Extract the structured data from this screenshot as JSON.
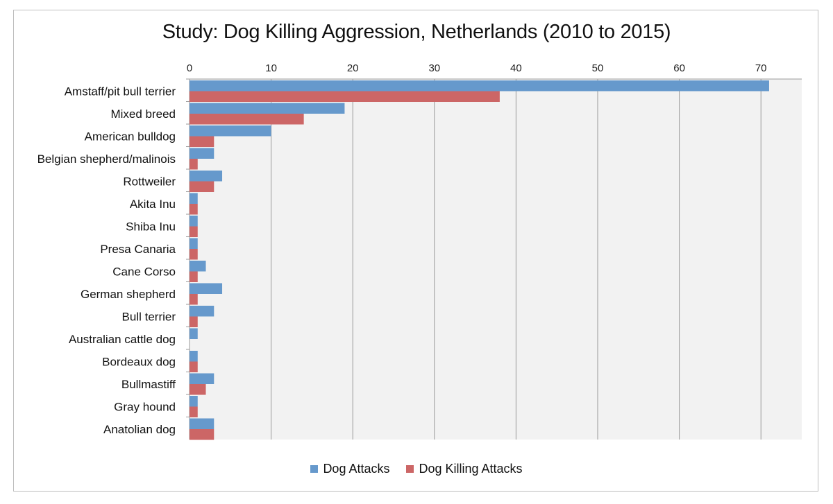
{
  "chart_data": {
    "type": "bar",
    "orientation": "horizontal",
    "title": "Study: Dog Killing Aggression, Netherlands (2010 to 2015)",
    "xlabel": "",
    "ylabel": "",
    "xlim": [
      0,
      75
    ],
    "xticks": [
      0,
      10,
      20,
      30,
      40,
      50,
      60,
      70
    ],
    "grid": true,
    "legend_position": "bottom",
    "categories": [
      "Amstaff/pit bull terrier",
      "Mixed breed",
      "American bulldog",
      "Belgian shepherd/malinois",
      "Rottweiler",
      "Akita Inu",
      "Shiba Inu",
      "Presa Canaria",
      "Cane Corso",
      "German shepherd",
      "Bull terrier",
      "Australian cattle dog",
      "Bordeaux dog",
      "Bullmastiff",
      "Gray hound",
      "Anatolian dog"
    ],
    "series": [
      {
        "name": "Dog Attacks",
        "color": "#6699cc",
        "values": [
          71,
          19,
          10,
          3,
          4,
          1,
          1,
          1,
          2,
          4,
          3,
          1,
          1,
          3,
          1,
          3
        ]
      },
      {
        "name": "Dog Killing Attacks",
        "color": "#cc6666",
        "values": [
          38,
          14,
          3,
          1,
          3,
          1,
          1,
          1,
          1,
          1,
          1,
          0,
          1,
          2,
          1,
          3
        ]
      }
    ]
  }
}
